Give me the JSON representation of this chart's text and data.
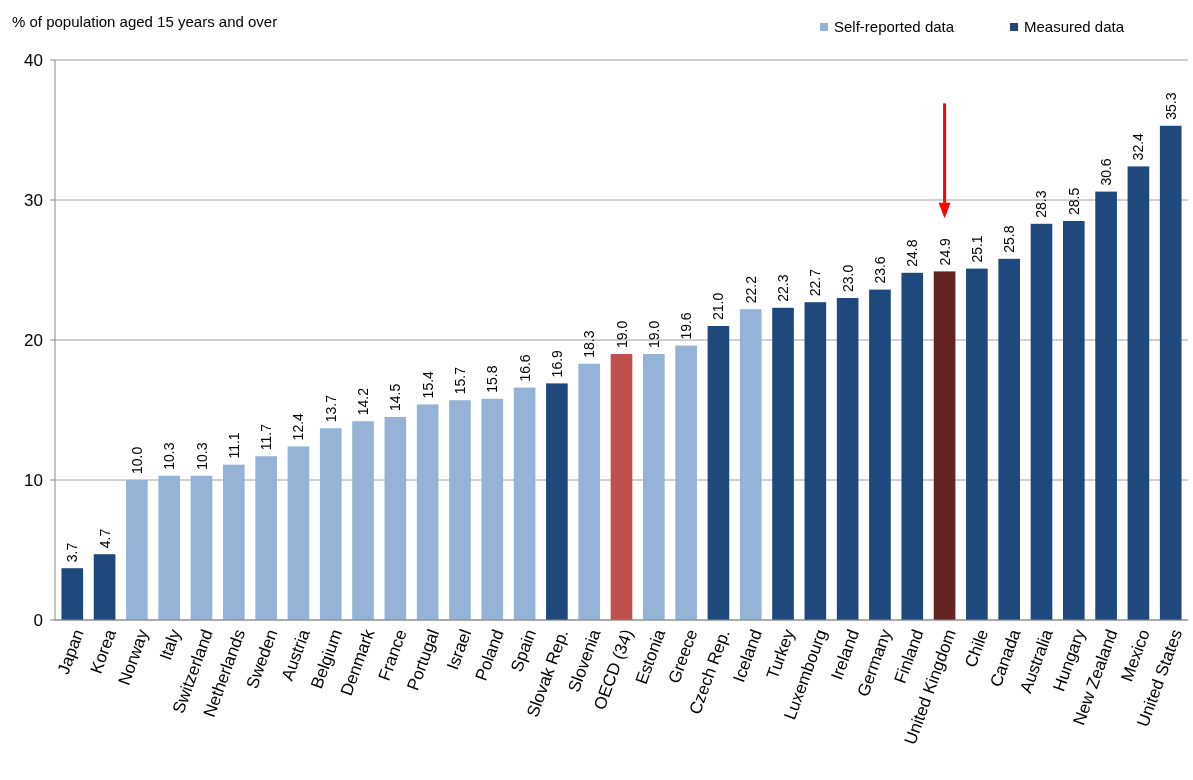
{
  "chart_data": {
    "type": "bar",
    "ylabel": "% of population aged 15 years and over",
    "categories": [
      "Japan",
      "Korea",
      "Norway",
      "Italy",
      "Switzerland",
      "Netherlands",
      "Sweden",
      "Austria",
      "Belgium",
      "Denmark",
      "France",
      "Portugal",
      "Israel",
      "Poland",
      "Spain",
      "Slovak Rep.",
      "Slovenia",
      "OECD (34)",
      "Estonia",
      "Greece",
      "Czech Rep.",
      "Iceland",
      "Turkey",
      "Luxembourg",
      "Ireland",
      "Germany",
      "Finland",
      "United Kingdom",
      "Chile",
      "Canada",
      "Australia",
      "Hungary",
      "New Zealand",
      "Mexico",
      "United States"
    ],
    "stacked": true,
    "series": [
      {
        "name": "Self-reported data",
        "color": "#95b3d7",
        "values": [
          null,
          null,
          10.0,
          10.3,
          10.3,
          11.1,
          11.7,
          12.4,
          13.7,
          14.2,
          14.5,
          15.4,
          15.7,
          15.8,
          16.6,
          null,
          18.3,
          null,
          19.0,
          19.6,
          null,
          22.2,
          null,
          null,
          null,
          null,
          null,
          null,
          null,
          null,
          null,
          null,
          null,
          null,
          null
        ],
        "value_labels": [
          null,
          null,
          "10.0",
          "10.3",
          "10.3",
          "11.1",
          "11.7",
          "12.4",
          "13.7",
          "14.2",
          "14.5",
          "15.4",
          "15.7",
          "15.8",
          "16.6",
          null,
          "18.3",
          null,
          "19.0",
          "19.6",
          null,
          "22.2",
          null,
          null,
          null,
          null,
          null,
          null,
          null,
          null,
          null,
          null,
          null,
          null,
          null
        ]
      },
      {
        "name": "Measured data",
        "color": "#1f497d",
        "colors": [
          "#1f497d",
          "#1f497d",
          null,
          null,
          null,
          null,
          null,
          null,
          null,
          null,
          null,
          null,
          null,
          null,
          null,
          "#1f497d",
          null,
          null,
          null,
          null,
          "#1f497d",
          null,
          "#1f497d",
          "#1f497d",
          "#1f497d",
          "#1f497d",
          "#1f497d",
          "#632523",
          "#1f497d",
          "#1f497d",
          "#1f497d",
          "#1f497d",
          "#1f497d",
          "#1f497d",
          "#1f497d"
        ],
        "values": [
          3.7,
          4.7,
          null,
          null,
          null,
          null,
          null,
          null,
          null,
          null,
          null,
          null,
          null,
          null,
          null,
          16.9,
          null,
          null,
          null,
          null,
          21.0,
          null,
          22.3,
          22.7,
          23.0,
          23.6,
          24.8,
          24.9,
          25.1,
          25.8,
          28.3,
          28.5,
          30.6,
          32.4,
          35.3
        ],
        "value_labels": [
          "3.7",
          "4.7",
          null,
          null,
          null,
          null,
          null,
          null,
          null,
          null,
          null,
          null,
          null,
          null,
          null,
          "16.9",
          null,
          null,
          null,
          null,
          "21.0",
          null,
          "22.3",
          "22.7",
          "23.0",
          "23.6",
          "24.8",
          "24.9",
          "25.1",
          "25.8",
          "28.3",
          "28.5",
          "30.6",
          "32.4",
          "35.3"
        ]
      },
      {
        "color": "#c0504d",
        "values": [
          null,
          null,
          null,
          null,
          null,
          null,
          null,
          null,
          null,
          null,
          null,
          null,
          null,
          null,
          null,
          null,
          null,
          19.0,
          null,
          null,
          null,
          null,
          null,
          null,
          null,
          null,
          null,
          null,
          null,
          null,
          null,
          null,
          null,
          null,
          null
        ],
        "value_labels": [
          null,
          null,
          null,
          null,
          null,
          null,
          null,
          null,
          null,
          null,
          null,
          null,
          null,
          null,
          null,
          null,
          null,
          "19.0",
          null,
          null,
          null,
          null,
          null,
          null,
          null,
          null,
          null,
          null,
          null,
          null,
          null,
          null,
          null,
          null,
          null
        ]
      }
    ],
    "ylim": [
      0,
      40
    ],
    "yticks": [
      0,
      10,
      20,
      30,
      40
    ],
    "grid": "y",
    "legend": "top right"
  }
}
